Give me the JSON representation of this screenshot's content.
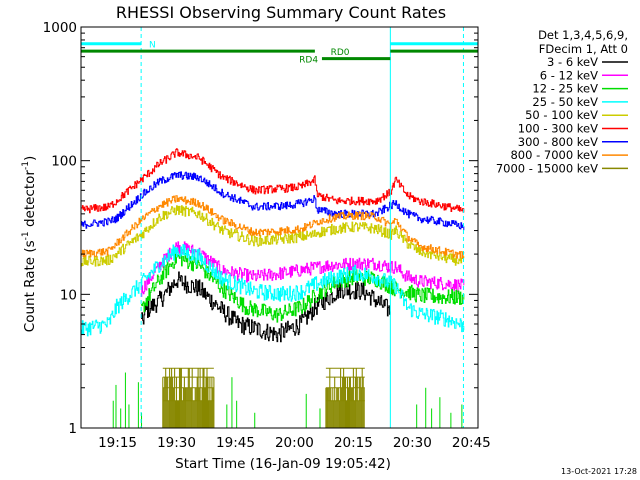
{
  "chart_data": {
    "type": "line",
    "title": "RHESSI Observing Summary Count Rates",
    "xlabel": "Start Time (16-Jan-09 19:05:42)",
    "ylabel": "Count Rate (s⁻¹ detector⁻¹)",
    "ylabel_main": "Count Rate (s",
    "ylabel_sup1": "-1",
    "ylabel_mid": " detector",
    "ylabel_sup2": "-1",
    "ylabel_end": ")",
    "yscale": "log",
    "ylim": [
      1,
      1000
    ],
    "xlim_minutes": [
      0,
      101
    ],
    "x_ticks": [
      {
        "label": "19:15",
        "min": 9.3
      },
      {
        "label": "19:30",
        "min": 24.3
      },
      {
        "label": "19:45",
        "min": 39.3
      },
      {
        "label": "20:00",
        "min": 54.3
      },
      {
        "label": "20:15",
        "min": 69.3
      },
      {
        "label": "20:30",
        "min": 84.3
      },
      {
        "label": "20:45",
        "min": 99.3
      }
    ],
    "y_ticks": [
      {
        "label": "1",
        "value": 1
      },
      {
        "label": "10",
        "value": 10
      },
      {
        "label": "100",
        "value": 100
      },
      {
        "label": "1000",
        "value": 1000
      }
    ],
    "legend_header": [
      "Det 1,3,4,5,6,9,",
      "FDecim 1, Att 0"
    ],
    "legend_position": "right",
    "series": [
      {
        "name": "3 - 6 keV",
        "color": "#000000",
        "noise": 0.07,
        "points": [
          [
            15.3,
            6
          ],
          [
            16.5,
            7.5
          ],
          [
            20,
            9
          ],
          [
            24.3,
            12.8
          ],
          [
            30,
            11
          ],
          [
            36,
            7.5
          ],
          [
            40,
            6
          ],
          [
            50,
            5
          ],
          [
            56,
            6
          ],
          [
            59.5,
            8
          ],
          [
            62,
            9
          ],
          [
            66,
            11
          ],
          [
            72,
            10.5
          ],
          [
            75,
            9
          ],
          [
            78.7,
            7.5
          ]
        ]
      },
      {
        "name": "6 - 12 keV",
        "color": "#ff00ff",
        "noise": 0.05,
        "points": [
          [
            15.3,
            10.5
          ],
          [
            16.5,
            12
          ],
          [
            20,
            16.5
          ],
          [
            24.3,
            23
          ],
          [
            30,
            20.5
          ],
          [
            36,
            15
          ],
          [
            44,
            13.5
          ],
          [
            52,
            14.5
          ],
          [
            58,
            15.5
          ],
          [
            63,
            16.5
          ],
          [
            70,
            17
          ],
          [
            75,
            17
          ],
          [
            78.7,
            16
          ],
          [
            80,
            16
          ],
          [
            83,
            13.5
          ],
          [
            86,
            12.5
          ],
          [
            93.5,
            12
          ],
          [
            97.5,
            11.5
          ]
        ]
      },
      {
        "name": "12 - 25 keV",
        "color": "#00dd00",
        "noise": 0.06,
        "points": [
          [
            15.3,
            7.5
          ],
          [
            16.5,
            9
          ],
          [
            20,
            13
          ],
          [
            24.3,
            19
          ],
          [
            30,
            16.5
          ],
          [
            36,
            11
          ],
          [
            42,
            8
          ],
          [
            50,
            7
          ],
          [
            56,
            8
          ],
          [
            60,
            10
          ],
          [
            65,
            12.5
          ],
          [
            70,
            13.5
          ],
          [
            75,
            13
          ],
          [
            78.7,
            11.5
          ],
          [
            80,
            11
          ],
          [
            83,
            10.5
          ],
          [
            86,
            9.8
          ],
          [
            93.5,
            9.5
          ],
          [
            97.5,
            9.5
          ]
        ]
      },
      {
        "name": "25 - 50 keV",
        "color": "#00ffff",
        "noise": 0.06,
        "points": [
          [
            0,
            5.5
          ],
          [
            7,
            6
          ],
          [
            9,
            8
          ],
          [
            15.3,
            12
          ],
          [
            20,
            17
          ],
          [
            24.3,
            21.5
          ],
          [
            30,
            19
          ],
          [
            36,
            13
          ],
          [
            44,
            10.5
          ],
          [
            52,
            10
          ],
          [
            56,
            10.5
          ],
          [
            60,
            12
          ],
          [
            65,
            13.5
          ],
          [
            70,
            14.5
          ],
          [
            75,
            13.5
          ],
          [
            78.7,
            12
          ],
          [
            80,
            11.5
          ],
          [
            83,
            8
          ],
          [
            86,
            7.2
          ],
          [
            93.5,
            6.5
          ],
          [
            97.5,
            5.8
          ]
        ]
      },
      {
        "name": "50 - 100 keV",
        "color": "#cccc00",
        "noise": 0.04,
        "points": [
          [
            0,
            17.5
          ],
          [
            7,
            18
          ],
          [
            9,
            20
          ],
          [
            15.3,
            28
          ],
          [
            20,
            38
          ],
          [
            24.3,
            43
          ],
          [
            30,
            40
          ],
          [
            36,
            30
          ],
          [
            44,
            25
          ],
          [
            52,
            26
          ],
          [
            56,
            27
          ],
          [
            59.5,
            28
          ],
          [
            60,
            29
          ],
          [
            65,
            31
          ],
          [
            70,
            32
          ],
          [
            75,
            31
          ],
          [
            78.7,
            28
          ],
          [
            80,
            30
          ],
          [
            83,
            24
          ],
          [
            86,
            21
          ],
          [
            93.5,
            18.5
          ],
          [
            97.5,
            17.5
          ]
        ]
      },
      {
        "name": "100 - 300 keV",
        "color": "#ff0000",
        "noise": 0.03,
        "points": [
          [
            0,
            43
          ],
          [
            7,
            45
          ],
          [
            9,
            50
          ],
          [
            15.3,
            72
          ],
          [
            20,
            95
          ],
          [
            24.3,
            115
          ],
          [
            30,
            105
          ],
          [
            36,
            75
          ],
          [
            44,
            60
          ],
          [
            52,
            62
          ],
          [
            56,
            64
          ],
          [
            59.5,
            72
          ],
          [
            60,
            55
          ],
          [
            65,
            50
          ],
          [
            70,
            50
          ],
          [
            75,
            50
          ],
          [
            78.7,
            58
          ],
          [
            80,
            72
          ],
          [
            83,
            55
          ],
          [
            86,
            50
          ],
          [
            93.5,
            45
          ],
          [
            97.5,
            42
          ]
        ]
      },
      {
        "name": "300 - 800 keV",
        "color": "#0000ff",
        "noise": 0.03,
        "points": [
          [
            0,
            33
          ],
          [
            7,
            35
          ],
          [
            9,
            37
          ],
          [
            15.3,
            55
          ],
          [
            20,
            70
          ],
          [
            24.3,
            78
          ],
          [
            30,
            75
          ],
          [
            36,
            57
          ],
          [
            44,
            45
          ],
          [
            52,
            46
          ],
          [
            56,
            48
          ],
          [
            59.5,
            52
          ],
          [
            60,
            43
          ],
          [
            65,
            40
          ],
          [
            70,
            40
          ],
          [
            75,
            40
          ],
          [
            78.7,
            46
          ],
          [
            80,
            48
          ],
          [
            83,
            40
          ],
          [
            86,
            37
          ],
          [
            93.5,
            34
          ],
          [
            97.5,
            32
          ]
        ]
      },
      {
        "name": "800 - 7000 keV",
        "color": "#ff8800",
        "noise": 0.03,
        "points": [
          [
            0,
            20
          ],
          [
            7,
            21
          ],
          [
            9,
            24
          ],
          [
            15.3,
            36
          ],
          [
            20,
            46
          ],
          [
            24.3,
            52
          ],
          [
            30,
            48
          ],
          [
            36,
            36
          ],
          [
            44,
            29
          ],
          [
            52,
            30
          ],
          [
            56,
            31
          ],
          [
            59.5,
            34
          ],
          [
            60,
            35
          ],
          [
            65,
            38
          ],
          [
            70,
            39
          ],
          [
            75,
            38
          ],
          [
            78.7,
            33
          ],
          [
            80,
            36
          ],
          [
            83,
            27
          ],
          [
            86,
            23
          ],
          [
            93.5,
            20.5
          ],
          [
            97.5,
            19.5
          ]
        ]
      },
      {
        "name": "7000 - 15000 keV",
        "color": "#888800",
        "noise": 0,
        "points": []
      }
    ],
    "spectrum_bars": {
      "color": "#888800",
      "intervals": [
        [
          20.8,
          33.8
        ],
        [
          62.3,
          72.2
        ]
      ],
      "levels": [
        1.6,
        2,
        2.4,
        2.8
      ]
    },
    "isolated_spikes": {
      "color": "#00dd00",
      "minutes": [
        8.2,
        8.9,
        10.1,
        11.3,
        12.2,
        14.6,
        15.4,
        37.1,
        38.4,
        39.6,
        44.2,
        57.3,
        60.8,
        85.4,
        87.7,
        89.2,
        91.3,
        94.1,
        96.9
      ],
      "heights": [
        1.6,
        2.1,
        1.4,
        2.6,
        1.5,
        2.2,
        1.3,
        1.5,
        2.4,
        1.6,
        1.3,
        1.8,
        1.4,
        1.5,
        2.0,
        1.4,
        1.7,
        1.3,
        1.5
      ]
    },
    "observation_bars": [
      {
        "label": "N",
        "color": "#00ffff",
        "y_value": 750,
        "ranges": [
          [
            0,
            15.3
          ]
        ],
        "label_min": 17.3
      },
      {
        "label": "N",
        "color": "#00ffff",
        "y_value": 750,
        "ranges": [
          [
            78.7,
            101
          ]
        ],
        "label_min": null
      },
      {
        "label": "RD0",
        "color": "#008800",
        "y_value": 660,
        "ranges": [
          [
            0,
            59.5
          ],
          [
            78.7,
            101
          ]
        ],
        "label_min": 63.5
      },
      {
        "label": "RD4",
        "color": "#008800",
        "y_value": 580,
        "ranges": [
          [
            61.3,
            78.7
          ]
        ],
        "label_min": 55.5
      }
    ],
    "vertical_markers": [
      {
        "min": 15.3,
        "color": "#00ffff",
        "dashed": true
      },
      {
        "min": 78.7,
        "color": "#00ffff",
        "dashed": false
      },
      {
        "min": 97.3,
        "color": "#00ffff",
        "dashed": true
      }
    ],
    "timestamp": "13-Oct-2021 17:28"
  }
}
